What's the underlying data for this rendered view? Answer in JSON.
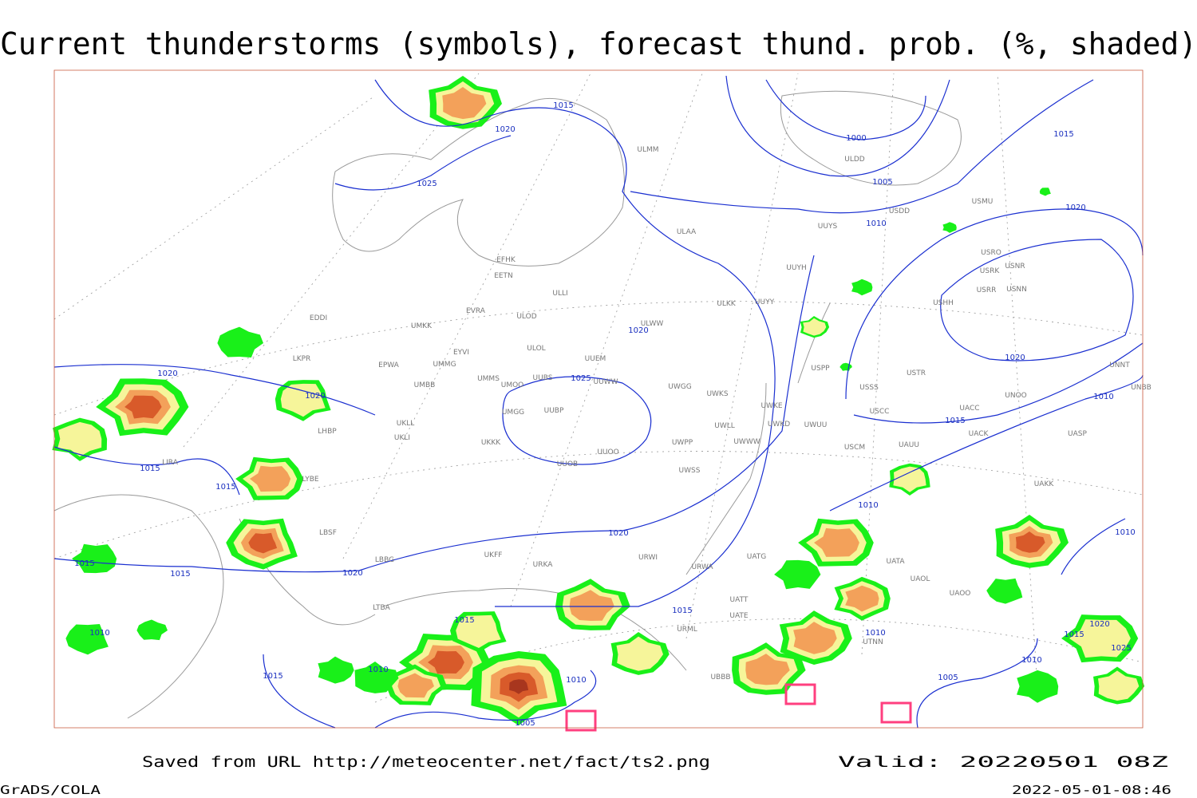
{
  "title": "Current thunderstorms (symbols), forecast thund. prob. (%, shaded)",
  "footer": {
    "source": "Saved from URL http://meteocenter.net/fact/ts2.png",
    "valid": "Valid: 20220501 08Z"
  },
  "credit": "GrADS/COLA",
  "timestamp": "2022-05-01-08:46",
  "isobar_labels": [
    "1015",
    "1020",
    "1025",
    "1000",
    "1005",
    "1010",
    "1015",
    "1020",
    "1020",
    "1020",
    "1025",
    "1020",
    "1020",
    "1015",
    "1015",
    "1015",
    "1010",
    "1010",
    "1020",
    "1020",
    "1015",
    "1015",
    "1010",
    "1015",
    "1015",
    "1010",
    "1010",
    "1020",
    "1015",
    "1025",
    "1010",
    "1015",
    "1010",
    "1010",
    "1005",
    "1005"
  ],
  "stations": [
    "ULMM",
    "ULDD",
    "USDD",
    "USMU",
    "UUYS",
    "ULAA",
    "USRO",
    "USRK",
    "USNR",
    "USRR",
    "USNN",
    "USHH",
    "UUYH",
    "EFHK",
    "EETN",
    "ULLI",
    "ULKK",
    "UUYY",
    "EVRA",
    "ULOD",
    "ULWW",
    "EDDI",
    "UMKK",
    "EYVI",
    "ULOL",
    "UUEM",
    "LKPR",
    "EPWA",
    "UMMG",
    "USPP",
    "USTR",
    "UNNT",
    "UMMS",
    "UMOO",
    "UUBS",
    "UUWW",
    "UWGG",
    "USSS",
    "UNOO",
    "UNBB",
    "UMBB",
    "UWKS",
    "UWKE",
    "UACC",
    "UMGG",
    "UUBP",
    "USCC",
    "LHBP",
    "UKLL",
    "UWLL",
    "UWKD",
    "UWUU",
    "UACK",
    "UASP",
    "UKLI",
    "UWPP",
    "UWWW",
    "USCM",
    "UAUU",
    "LIRA",
    "UKKK",
    "UUOO",
    "UUOB",
    "UWSS",
    "UAKK",
    "LYBE",
    "LBSF",
    "LBBG",
    "UKFF",
    "URKA",
    "URWI",
    "URWA",
    "UATG",
    "UATA",
    "UAOL",
    "UAOO",
    "UATT",
    "UATE",
    "URML",
    "UBBB",
    "UTNN",
    "LTBA"
  ]
}
